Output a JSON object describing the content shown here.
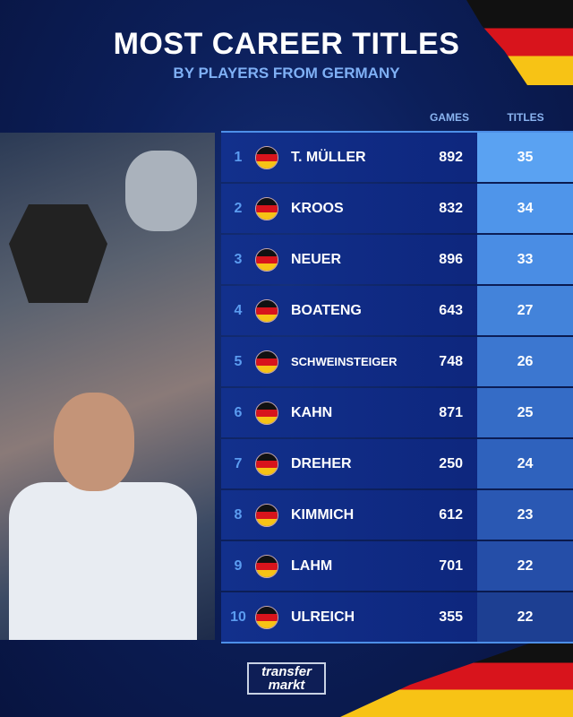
{
  "title": "MOST CAREER TITLES",
  "subtitle": "BY PLAYERS FROM GERMANY",
  "columns": {
    "games": "GAMES",
    "titles": "TITLES"
  },
  "rows": [
    {
      "rank": "1",
      "name": "T. MÜLLER",
      "games": "892",
      "titles": "35",
      "color": "#5aa2f2"
    },
    {
      "rank": "2",
      "name": "KROOS",
      "games": "832",
      "titles": "34",
      "color": "#4f95ea"
    },
    {
      "rank": "3",
      "name": "NEUER",
      "games": "896",
      "titles": "33",
      "color": "#4a8de4"
    },
    {
      "rank": "4",
      "name": "BOATENG",
      "games": "643",
      "titles": "27",
      "color": "#4383da"
    },
    {
      "rank": "5",
      "name": "SCHWEINSTEIGER",
      "games": "748",
      "titles": "26",
      "color": "#3c77d0"
    },
    {
      "rank": "6",
      "name": "KAHN",
      "games": "871",
      "titles": "25",
      "color": "#356cc6"
    },
    {
      "rank": "7",
      "name": "DREHER",
      "games": "250",
      "titles": "24",
      "color": "#2f62bd"
    },
    {
      "rank": "8",
      "name": "KIMMICH",
      "games": "612",
      "titles": "23",
      "color": "#2a58b3"
    },
    {
      "rank": "9",
      "name": "LAHM",
      "games": "701",
      "titles": "22",
      "color": "#254ea8"
    },
    {
      "rank": "10",
      "name": "ULREICH",
      "games": "355",
      "titles": "22",
      "color": "#1d3f92"
    }
  ],
  "flag_icon": "germany-flag",
  "logo": {
    "line1": "transfer",
    "line2": "markt"
  }
}
